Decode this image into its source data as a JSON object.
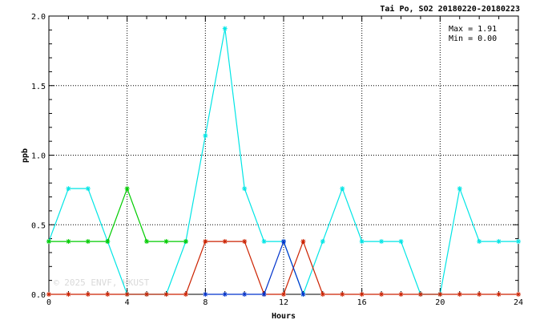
{
  "chart_data": {
    "type": "line",
    "title": "Tai Po, SO2 20180220-20180223",
    "xlabel": "Hours",
    "ylabel": "ppb",
    "xlim": [
      0,
      24
    ],
    "ylim": [
      0,
      2.0
    ],
    "x_ticks": [
      0,
      4,
      8,
      12,
      16,
      20,
      24
    ],
    "y_ticks": [
      0.0,
      0.5,
      1.0,
      1.5,
      2.0
    ],
    "x_tick_labels": [
      "0",
      "4",
      "8",
      "12",
      "16",
      "20",
      "24"
    ],
    "y_tick_labels": [
      "0.0",
      "0.5",
      "1.0",
      "1.5",
      "2.0"
    ],
    "grid": true,
    "annotations": {
      "max": "Max = 1.91",
      "min": "Min = 0.00"
    },
    "watermark": "© 2025 ENVF, HKUST",
    "x": [
      0,
      1,
      2,
      3,
      4,
      5,
      6,
      7,
      8,
      9,
      10,
      11,
      12,
      13,
      14,
      15,
      16,
      17,
      18,
      19,
      20,
      21,
      22,
      23,
      24
    ],
    "series": [
      {
        "color": "#00e5e5",
        "values": [
          0.38,
          0.76,
          0.76,
          0.38,
          0,
          0,
          0,
          0.38,
          1.14,
          1.91,
          0.76,
          0.38,
          0.38,
          0,
          0.38,
          0.76,
          0.38,
          0.38,
          0.38,
          0,
          0,
          0.76,
          0.38,
          0.38,
          0.38
        ]
      },
      {
        "color": "#00cc00",
        "values": [
          0.38,
          0.38,
          0.38,
          0.38,
          0.76,
          0.38,
          0.38,
          0.38,
          null,
          null,
          null,
          null,
          null,
          null,
          null,
          null,
          null,
          null,
          null,
          null,
          null,
          null,
          null,
          null,
          null
        ]
      },
      {
        "color": "#cc2200",
        "values": [
          0,
          0,
          0,
          0,
          0,
          0,
          0,
          0,
          0.38,
          0.38,
          0.38,
          0,
          0,
          0.38,
          0,
          0,
          0,
          0,
          0,
          0,
          0,
          0,
          0,
          0,
          0
        ]
      },
      {
        "color": "#0033cc",
        "values": [
          null,
          null,
          null,
          null,
          null,
          null,
          null,
          null,
          0,
          0,
          0,
          0,
          0.38,
          0,
          null,
          null,
          null,
          null,
          null,
          null,
          null,
          null,
          null,
          null,
          null
        ]
      }
    ]
  }
}
